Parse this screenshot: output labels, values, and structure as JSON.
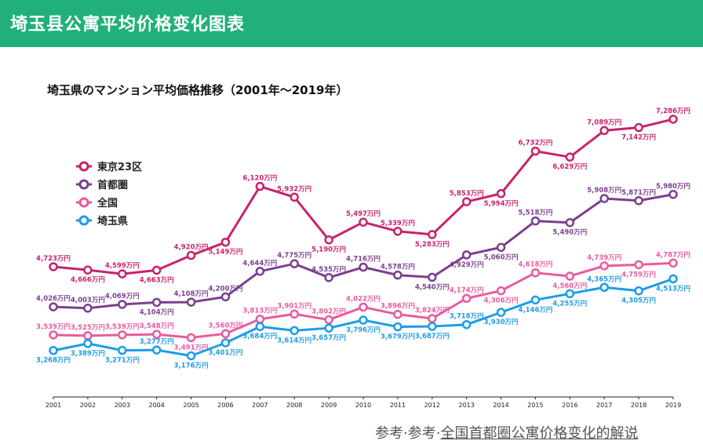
{
  "header": {
    "title": "埼玉县公寓平均价格变化图表"
  },
  "footer": {
    "prefix": "参考·参考·",
    "link": "全国首都圈公寓价格变化的解说"
  },
  "colors": {
    "header_bg": "#22b07a",
    "tokyo": "#c8226e",
    "shutoken": "#7b3f8f",
    "zenkoku": "#ea5a9e",
    "saitama": "#1c9ce8"
  },
  "chart_data": {
    "type": "line",
    "title": "埼玉県のマンション平均価格推移（2001年〜2019年）",
    "xlabel": "",
    "ylabel": "",
    "unit_suffix": "万円",
    "ylim": [
      2460,
      7700
    ],
    "grid": false,
    "legend_position": "top-left",
    "x": [
      "2001",
      "2002",
      "2003",
      "2004",
      "2005",
      "2006",
      "2007",
      "2008",
      "2009",
      "2010",
      "2011",
      "2012",
      "2013",
      "2014",
      "2015",
      "2016",
      "2017",
      "2018",
      "2019"
    ],
    "series": [
      {
        "name": "東京23区",
        "color": "#c8226e",
        "values": [
          4723,
          4666,
          4599,
          4663,
          4920,
          5149,
          6120,
          5932,
          5190,
          5497,
          5339,
          5283,
          5853,
          5994,
          6732,
          6629,
          7089,
          7142,
          7286
        ]
      },
      {
        "name": "首都圏",
        "color": "#7b3f8f",
        "values": [
          4026,
          4003,
          4069,
          4104,
          4108,
          4200,
          4644,
          4775,
          4535,
          4716,
          4578,
          4540,
          4929,
          5060,
          5518,
          5490,
          5908,
          5871,
          5980
        ]
      },
      {
        "name": "全国",
        "color": "#ea5a9e",
        "values": [
          3539,
          3525,
          3539,
          3548,
          3491,
          3560,
          3813,
          3901,
          3802,
          4022,
          3896,
          3824,
          4174,
          4306,
          4618,
          4560,
          4739,
          4759,
          4787
        ]
      },
      {
        "name": "埼玉県",
        "color": "#1c9ce8",
        "values": [
          3268,
          3389,
          3271,
          3277,
          3176,
          3401,
          3684,
          3614,
          3657,
          3796,
          3679,
          3687,
          3718,
          3930,
          4146,
          4255,
          4365,
          4305,
          4513
        ]
      }
    ]
  }
}
